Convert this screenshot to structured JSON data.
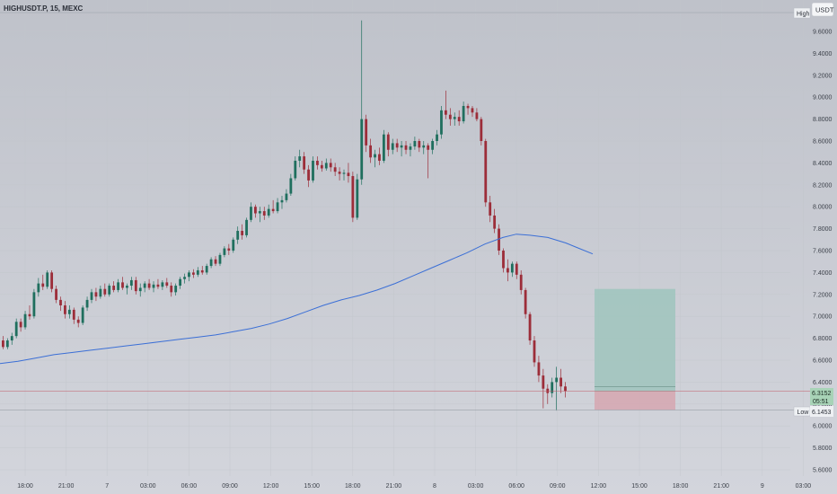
{
  "header": {
    "symbol_label": "HIGHUSDT.P, 15, MEXC"
  },
  "currency_button": "USDT",
  "high_label": "High",
  "low_label": "Low",
  "current_price": "6.3152",
  "countdown": "05:51",
  "low_price": "6.1453",
  "colors": {
    "background": "#c9ccd3",
    "up_candle": "#1f6f5e",
    "down_candle": "#9c2d39",
    "moving_average": "#3b6fd6",
    "profit_zone": "#9fc4bd",
    "loss_zone": "#d6a7b0",
    "price_line": "#c25a66"
  },
  "chart_data": {
    "type": "candlestick",
    "price_axis_ticks": [
      "9.6000",
      "9.4000",
      "9.2000",
      "9.0000",
      "8.8000",
      "8.6000",
      "8.4000",
      "8.2000",
      "8.0000",
      "7.8000",
      "7.6000",
      "7.4000",
      "7.2000",
      "7.0000",
      "6.8000",
      "6.6000",
      "6.4000",
      "6.2000",
      "6.0000",
      "5.8000",
      "5.6000"
    ],
    "time_axis_ticks": [
      "18:00",
      "21:00",
      "7",
      "03:00",
      "06:00",
      "09:00",
      "12:00",
      "15:00",
      "18:00",
      "21:00",
      "8",
      "03:00",
      "06:00",
      "09:00",
      "12:00",
      "15:00",
      "18:00",
      "21:00",
      "9",
      "03:00"
    ],
    "ylim": [
      5.6,
      9.7
    ],
    "session_high": 9.7,
    "session_low": 6.1453,
    "last_price": 6.3152,
    "moving_average_points": [
      [
        0,
        6.57
      ],
      [
        20,
        6.59
      ],
      [
        40,
        6.62
      ],
      [
        60,
        6.65
      ],
      [
        80,
        6.67
      ],
      [
        100,
        6.69
      ],
      [
        120,
        6.71
      ],
      [
        140,
        6.73
      ],
      [
        160,
        6.75
      ],
      [
        180,
        6.77
      ],
      [
        200,
        6.79
      ],
      [
        220,
        6.81
      ],
      [
        240,
        6.83
      ],
      [
        260,
        6.86
      ],
      [
        280,
        6.89
      ],
      [
        300,
        6.93
      ],
      [
        320,
        6.98
      ],
      [
        340,
        7.04
      ],
      [
        360,
        7.1
      ],
      [
        380,
        7.15
      ],
      [
        400,
        7.19
      ],
      [
        420,
        7.24
      ],
      [
        440,
        7.3
      ],
      [
        460,
        7.37
      ],
      [
        480,
        7.44
      ],
      [
        500,
        7.51
      ],
      [
        520,
        7.58
      ],
      [
        540,
        7.66
      ],
      [
        560,
        7.72
      ],
      [
        575,
        7.75
      ],
      [
        590,
        7.74
      ],
      [
        610,
        7.72
      ],
      [
        630,
        7.67
      ],
      [
        645,
        7.62
      ],
      [
        660,
        7.57
      ]
    ],
    "candles": [
      {
        "o": 6.78,
        "h": 6.82,
        "l": 6.7,
        "c": 6.72
      },
      {
        "o": 6.72,
        "h": 6.8,
        "l": 6.7,
        "c": 6.78
      },
      {
        "o": 6.78,
        "h": 6.85,
        "l": 6.74,
        "c": 6.82
      },
      {
        "o": 6.82,
        "h": 6.98,
        "l": 6.8,
        "c": 6.95
      },
      {
        "o": 6.95,
        "h": 6.98,
        "l": 6.86,
        "c": 6.9
      },
      {
        "o": 6.9,
        "h": 7.05,
        "l": 6.88,
        "c": 7.02
      },
      {
        "o": 7.02,
        "h": 7.1,
        "l": 6.97,
        "c": 7.0
      },
      {
        "o": 7.0,
        "h": 7.25,
        "l": 6.98,
        "c": 7.22
      },
      {
        "o": 7.22,
        "h": 7.35,
        "l": 7.18,
        "c": 7.3
      },
      {
        "o": 7.3,
        "h": 7.38,
        "l": 7.24,
        "c": 7.27
      },
      {
        "o": 7.27,
        "h": 7.42,
        "l": 7.25,
        "c": 7.4
      },
      {
        "o": 7.4,
        "h": 7.42,
        "l": 7.22,
        "c": 7.25
      },
      {
        "o": 7.25,
        "h": 7.28,
        "l": 7.12,
        "c": 7.15
      },
      {
        "o": 7.15,
        "h": 7.18,
        "l": 7.05,
        "c": 7.1
      },
      {
        "o": 7.1,
        "h": 7.14,
        "l": 6.98,
        "c": 7.02
      },
      {
        "o": 7.02,
        "h": 7.1,
        "l": 6.98,
        "c": 7.06
      },
      {
        "o": 7.06,
        "h": 7.08,
        "l": 6.93,
        "c": 6.97
      },
      {
        "o": 6.97,
        "h": 7.0,
        "l": 6.9,
        "c": 6.94
      },
      {
        "o": 6.94,
        "h": 7.1,
        "l": 6.92,
        "c": 7.08
      },
      {
        "o": 7.08,
        "h": 7.18,
        "l": 7.05,
        "c": 7.15
      },
      {
        "o": 7.15,
        "h": 7.25,
        "l": 7.12,
        "c": 7.22
      },
      {
        "o": 7.22,
        "h": 7.26,
        "l": 7.14,
        "c": 7.18
      },
      {
        "o": 7.18,
        "h": 7.28,
        "l": 7.16,
        "c": 7.25
      },
      {
        "o": 7.25,
        "h": 7.3,
        "l": 7.18,
        "c": 7.2
      },
      {
        "o": 7.2,
        "h": 7.3,
        "l": 7.18,
        "c": 7.28
      },
      {
        "o": 7.28,
        "h": 7.32,
        "l": 7.22,
        "c": 7.24
      },
      {
        "o": 7.24,
        "h": 7.34,
        "l": 7.22,
        "c": 7.31
      },
      {
        "o": 7.31,
        "h": 7.36,
        "l": 7.24,
        "c": 7.26
      },
      {
        "o": 7.26,
        "h": 7.3,
        "l": 7.2,
        "c": 7.28
      },
      {
        "o": 7.28,
        "h": 7.36,
        "l": 7.24,
        "c": 7.33
      },
      {
        "o": 7.33,
        "h": 7.36,
        "l": 7.2,
        "c": 7.23
      },
      {
        "o": 7.23,
        "h": 7.3,
        "l": 7.18,
        "c": 7.26
      },
      {
        "o": 7.26,
        "h": 7.32,
        "l": 7.22,
        "c": 7.3
      },
      {
        "o": 7.3,
        "h": 7.34,
        "l": 7.24,
        "c": 7.26
      },
      {
        "o": 7.26,
        "h": 7.32,
        "l": 7.22,
        "c": 7.29
      },
      {
        "o": 7.29,
        "h": 7.34,
        "l": 7.25,
        "c": 7.27
      },
      {
        "o": 7.27,
        "h": 7.33,
        "l": 7.24,
        "c": 7.31
      },
      {
        "o": 7.31,
        "h": 7.35,
        "l": 7.26,
        "c": 7.28
      },
      {
        "o": 7.28,
        "h": 7.31,
        "l": 7.18,
        "c": 7.22
      },
      {
        "o": 7.22,
        "h": 7.3,
        "l": 7.19,
        "c": 7.28
      },
      {
        "o": 7.28,
        "h": 7.36,
        "l": 7.25,
        "c": 7.34
      },
      {
        "o": 7.34,
        "h": 7.39,
        "l": 7.3,
        "c": 7.36
      },
      {
        "o": 7.36,
        "h": 7.42,
        "l": 7.32,
        "c": 7.4
      },
      {
        "o": 7.4,
        "h": 7.43,
        "l": 7.35,
        "c": 7.38
      },
      {
        "o": 7.38,
        "h": 7.45,
        "l": 7.36,
        "c": 7.42
      },
      {
        "o": 7.42,
        "h": 7.46,
        "l": 7.38,
        "c": 7.4
      },
      {
        "o": 7.4,
        "h": 7.48,
        "l": 7.38,
        "c": 7.46
      },
      {
        "o": 7.46,
        "h": 7.54,
        "l": 7.44,
        "c": 7.52
      },
      {
        "o": 7.52,
        "h": 7.55,
        "l": 7.46,
        "c": 7.48
      },
      {
        "o": 7.48,
        "h": 7.58,
        "l": 7.46,
        "c": 7.56
      },
      {
        "o": 7.56,
        "h": 7.64,
        "l": 7.54,
        "c": 7.62
      },
      {
        "o": 7.62,
        "h": 7.66,
        "l": 7.56,
        "c": 7.6
      },
      {
        "o": 7.6,
        "h": 7.72,
        "l": 7.58,
        "c": 7.7
      },
      {
        "o": 7.7,
        "h": 7.82,
        "l": 7.66,
        "c": 7.78
      },
      {
        "o": 7.78,
        "h": 7.84,
        "l": 7.7,
        "c": 7.74
      },
      {
        "o": 7.74,
        "h": 7.9,
        "l": 7.72,
        "c": 7.88
      },
      {
        "o": 7.88,
        "h": 8.04,
        "l": 7.86,
        "c": 8.0
      },
      {
        "o": 8.0,
        "h": 8.02,
        "l": 7.9,
        "c": 7.94
      },
      {
        "o": 7.94,
        "h": 8.0,
        "l": 7.86,
        "c": 7.96
      },
      {
        "o": 7.96,
        "h": 8.0,
        "l": 7.88,
        "c": 7.92
      },
      {
        "o": 7.92,
        "h": 8.02,
        "l": 7.9,
        "c": 7.98
      },
      {
        "o": 7.98,
        "h": 8.06,
        "l": 7.94,
        "c": 7.96
      },
      {
        "o": 7.96,
        "h": 8.08,
        "l": 7.94,
        "c": 8.04
      },
      {
        "o": 8.04,
        "h": 8.1,
        "l": 7.98,
        "c": 8.06
      },
      {
        "o": 8.06,
        "h": 8.16,
        "l": 8.04,
        "c": 8.12
      },
      {
        "o": 8.12,
        "h": 8.3,
        "l": 8.1,
        "c": 8.26
      },
      {
        "o": 8.26,
        "h": 8.46,
        "l": 8.24,
        "c": 8.42
      },
      {
        "o": 8.42,
        "h": 8.52,
        "l": 8.36,
        "c": 8.46
      },
      {
        "o": 8.46,
        "h": 8.5,
        "l": 8.3,
        "c": 8.34
      },
      {
        "o": 8.34,
        "h": 8.38,
        "l": 8.18,
        "c": 8.24
      },
      {
        "o": 8.24,
        "h": 8.46,
        "l": 8.22,
        "c": 8.42
      },
      {
        "o": 8.42,
        "h": 8.46,
        "l": 8.34,
        "c": 8.38
      },
      {
        "o": 8.38,
        "h": 8.42,
        "l": 8.32,
        "c": 8.35
      },
      {
        "o": 8.35,
        "h": 8.44,
        "l": 8.33,
        "c": 8.4
      },
      {
        "o": 8.4,
        "h": 8.44,
        "l": 8.32,
        "c": 8.36
      },
      {
        "o": 8.36,
        "h": 8.4,
        "l": 8.28,
        "c": 8.32
      },
      {
        "o": 8.32,
        "h": 8.36,
        "l": 8.24,
        "c": 8.3
      },
      {
        "o": 8.3,
        "h": 8.34,
        "l": 8.24,
        "c": 8.31
      },
      {
        "o": 8.31,
        "h": 8.4,
        "l": 8.22,
        "c": 8.28
      },
      {
        "o": 8.28,
        "h": 8.32,
        "l": 7.86,
        "c": 7.9
      },
      {
        "o": 7.9,
        "h": 8.3,
        "l": 7.88,
        "c": 8.25
      },
      {
        "o": 8.25,
        "h": 9.7,
        "l": 8.2,
        "c": 8.8
      },
      {
        "o": 8.8,
        "h": 8.84,
        "l": 8.5,
        "c": 8.56
      },
      {
        "o": 8.56,
        "h": 8.62,
        "l": 8.4,
        "c": 8.45
      },
      {
        "o": 8.45,
        "h": 8.52,
        "l": 8.36,
        "c": 8.48
      },
      {
        "o": 8.48,
        "h": 8.54,
        "l": 8.38,
        "c": 8.42
      },
      {
        "o": 8.42,
        "h": 8.7,
        "l": 8.4,
        "c": 8.66
      },
      {
        "o": 8.66,
        "h": 8.68,
        "l": 8.46,
        "c": 8.52
      },
      {
        "o": 8.52,
        "h": 8.62,
        "l": 8.48,
        "c": 8.58
      },
      {
        "o": 8.58,
        "h": 8.62,
        "l": 8.5,
        "c": 8.54
      },
      {
        "o": 8.54,
        "h": 8.6,
        "l": 8.46,
        "c": 8.56
      },
      {
        "o": 8.56,
        "h": 8.6,
        "l": 8.48,
        "c": 8.52
      },
      {
        "o": 8.52,
        "h": 8.58,
        "l": 8.46,
        "c": 8.55
      },
      {
        "o": 8.55,
        "h": 8.64,
        "l": 8.52,
        "c": 8.6
      },
      {
        "o": 8.6,
        "h": 8.62,
        "l": 8.5,
        "c": 8.54
      },
      {
        "o": 8.54,
        "h": 8.6,
        "l": 8.48,
        "c": 8.56
      },
      {
        "o": 8.56,
        "h": 8.58,
        "l": 8.26,
        "c": 8.52
      },
      {
        "o": 8.52,
        "h": 8.62,
        "l": 8.48,
        "c": 8.6
      },
      {
        "o": 8.6,
        "h": 8.7,
        "l": 8.56,
        "c": 8.66
      },
      {
        "o": 8.66,
        "h": 8.92,
        "l": 8.62,
        "c": 8.88
      },
      {
        "o": 8.88,
        "h": 9.06,
        "l": 8.8,
        "c": 8.84
      },
      {
        "o": 8.84,
        "h": 8.9,
        "l": 8.74,
        "c": 8.8
      },
      {
        "o": 8.8,
        "h": 8.86,
        "l": 8.74,
        "c": 8.82
      },
      {
        "o": 8.82,
        "h": 8.88,
        "l": 8.74,
        "c": 8.78
      },
      {
        "o": 8.78,
        "h": 8.96,
        "l": 8.76,
        "c": 8.92
      },
      {
        "o": 8.92,
        "h": 8.94,
        "l": 8.84,
        "c": 8.9
      },
      {
        "o": 8.9,
        "h": 8.92,
        "l": 8.82,
        "c": 8.86
      },
      {
        "o": 8.86,
        "h": 8.9,
        "l": 8.78,
        "c": 8.8
      },
      {
        "o": 8.8,
        "h": 8.82,
        "l": 8.56,
        "c": 8.6
      },
      {
        "o": 8.6,
        "h": 8.62,
        "l": 8.0,
        "c": 8.04
      },
      {
        "o": 8.04,
        "h": 8.1,
        "l": 7.86,
        "c": 7.92
      },
      {
        "o": 7.92,
        "h": 7.98,
        "l": 7.76,
        "c": 7.8
      },
      {
        "o": 7.8,
        "h": 7.84,
        "l": 7.56,
        "c": 7.6
      },
      {
        "o": 7.6,
        "h": 7.62,
        "l": 7.4,
        "c": 7.44
      },
      {
        "o": 7.44,
        "h": 7.52,
        "l": 7.32,
        "c": 7.4
      },
      {
        "o": 7.4,
        "h": 7.5,
        "l": 7.36,
        "c": 7.48
      },
      {
        "o": 7.48,
        "h": 7.5,
        "l": 7.34,
        "c": 7.38
      },
      {
        "o": 7.38,
        "h": 7.42,
        "l": 7.2,
        "c": 7.24
      },
      {
        "o": 7.24,
        "h": 7.26,
        "l": 6.98,
        "c": 7.02
      },
      {
        "o": 7.02,
        "h": 7.04,
        "l": 6.74,
        "c": 6.78
      },
      {
        "o": 6.78,
        "h": 6.82,
        "l": 6.54,
        "c": 6.58
      },
      {
        "o": 6.58,
        "h": 6.64,
        "l": 6.4,
        "c": 6.46
      },
      {
        "o": 6.46,
        "h": 6.52,
        "l": 6.16,
        "c": 6.34
      },
      {
        "o": 6.34,
        "h": 6.38,
        "l": 6.2,
        "c": 6.3
      },
      {
        "o": 6.3,
        "h": 6.44,
        "l": 6.26,
        "c": 6.4
      },
      {
        "o": 6.4,
        "h": 6.54,
        "l": 6.14,
        "c": 6.44
      },
      {
        "o": 6.44,
        "h": 6.52,
        "l": 6.3,
        "c": 6.36
      },
      {
        "o": 6.36,
        "h": 6.4,
        "l": 6.26,
        "c": 6.32
      }
    ],
    "position": {
      "entry": 6.3152,
      "target": 7.25,
      "stop": 6.1453
    }
  }
}
